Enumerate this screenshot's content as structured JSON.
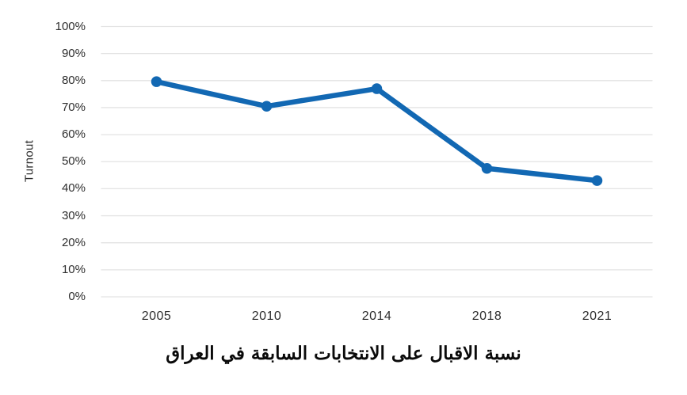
{
  "figure": {
    "background": "#ffffff"
  },
  "chart_data": {
    "type": "line",
    "categories": [
      "2005",
      "2010",
      "2014",
      "2018",
      "2021"
    ],
    "values": [
      79.6,
      70.5,
      77,
      47.5,
      43
    ],
    "series_name": "Turnout",
    "title": "نسبة الاقبال على الانتخابات السابقة في العراق",
    "xlabel": "",
    "ylabel": "Turnout",
    "ylim": [
      0,
      100
    ],
    "ytick_step": 10,
    "ytick_suffix": "%",
    "grid": true,
    "legend": "none",
    "marker": "circle",
    "colors": {
      "line": "#1268b3",
      "marker": "#1268b3",
      "grid": "#e3e3e3",
      "tick_text": "#2e2e2e",
      "title_text": "#0a0a0a"
    }
  }
}
